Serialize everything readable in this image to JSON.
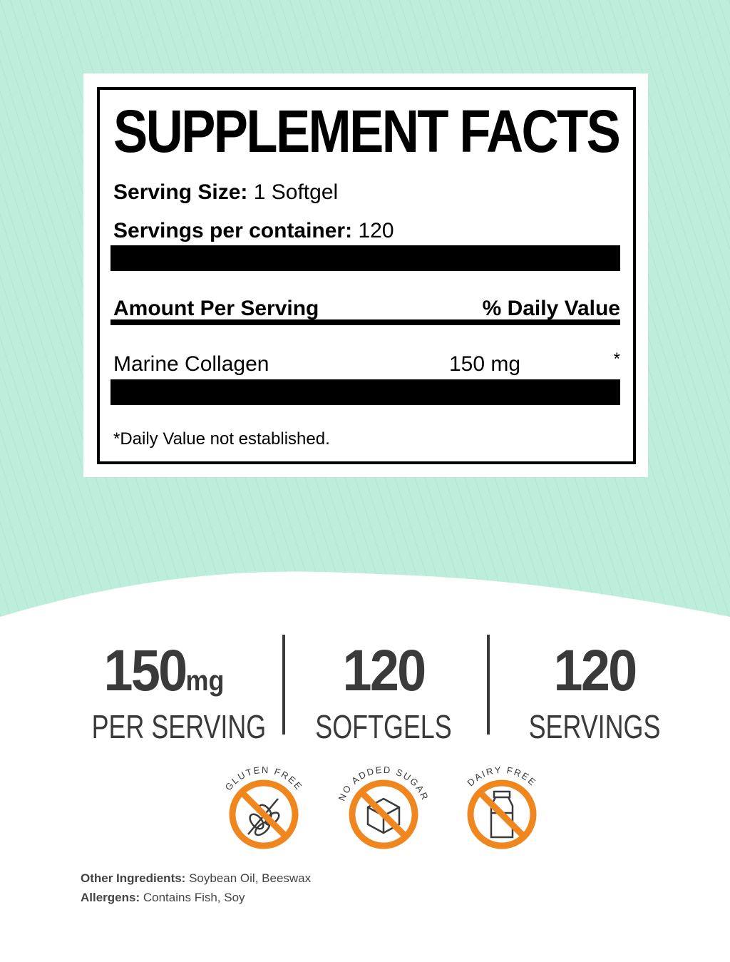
{
  "colors": {
    "mint": "#bdeedc",
    "orange": "#f0861e",
    "dark": "#3a3a3a"
  },
  "facts": {
    "title": "SUPPLEMENT FACTS",
    "serving_size_label": "Serving Size:",
    "serving_size_value": "1 Softgel",
    "servings_label": "Servings per container:",
    "servings_value": "120",
    "amount_header": "Amount Per Serving",
    "dv_header": "% Daily Value",
    "ingredient": {
      "name": "Marine Collagen",
      "amount": "150 mg",
      "dv": "*"
    },
    "footnote": "*Daily Value not established."
  },
  "stats": [
    {
      "value": "150",
      "unit": "mg",
      "label": "PER SERVING"
    },
    {
      "value": "120",
      "unit": "",
      "label": "SOFTGELS"
    },
    {
      "value": "120",
      "unit": "",
      "label": "SERVINGS"
    }
  ],
  "badges": [
    {
      "text": "GLUTEN FREE",
      "icon": "wheat-icon"
    },
    {
      "text": "NO ADDED SUGAR",
      "icon": "sugar-cube-icon"
    },
    {
      "text": "DAIRY FREE",
      "icon": "milk-bottle-icon"
    }
  ],
  "other_ingredients": {
    "label": "Other Ingredients:",
    "value": "Soybean Oil, Beeswax"
  },
  "allergens": {
    "label": "Allergens:",
    "value": "Contains Fish, Soy"
  }
}
